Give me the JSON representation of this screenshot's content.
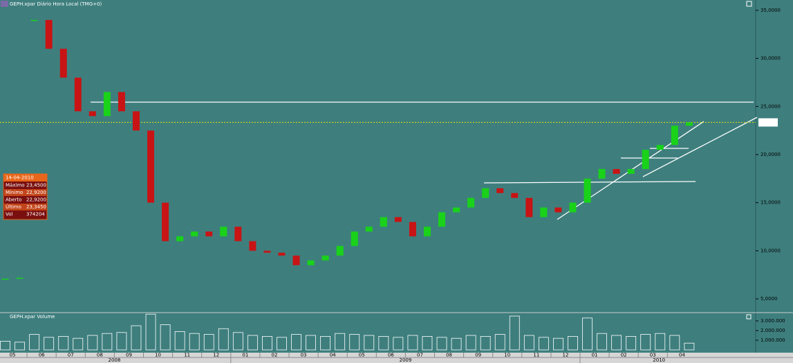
{
  "header": {
    "title": "GEPH.xpar Diário Hora Local (TMG+0)"
  },
  "info_panel": {
    "date": "14-04-2010",
    "rows": [
      [
        "Máximo",
        "23,4500"
      ],
      [
        "Mínimo",
        "22,9200"
      ],
      [
        "Aberto",
        "22,9200"
      ],
      [
        "Último",
        "23,3450"
      ],
      [
        "Vol",
        "374204"
      ]
    ]
  },
  "chart_data": [
    {
      "type": "candlestick",
      "categories": [
        "05",
        null,
        "06",
        null,
        "07",
        null,
        "08",
        null,
        "09",
        null,
        "10",
        null,
        "11",
        null,
        "12",
        null,
        "01",
        null,
        "02",
        null,
        "03",
        null,
        "04",
        null,
        "05",
        null,
        "06",
        null,
        "07",
        null,
        "08",
        null,
        "09",
        null,
        "10",
        null,
        "11",
        null,
        "12",
        null,
        "01",
        null,
        "02",
        null,
        "03",
        null,
        "04",
        null
      ],
      "years": [
        "2008",
        "2009",
        "2010"
      ],
      "values": [
        7100,
        7200,
        34000,
        31000,
        28000,
        24500,
        24000,
        26500,
        24500,
        22500,
        15000,
        11000,
        11500,
        12000,
        11500,
        12500,
        11000,
        10000,
        9800,
        9500,
        8500,
        9000,
        9500,
        10500,
        12000,
        12500,
        13500,
        13000,
        11500,
        12500,
        14000,
        14500,
        15500,
        16500,
        16000,
        15500,
        13500,
        14500,
        14000,
        15000,
        17500,
        18500,
        18000,
        18500,
        20500,
        21000,
        23000,
        23345
      ],
      "up_color": "#19d219",
      "down_color": "#c81414",
      "ylim": [
        3571,
        36071
      ],
      "yticks": [
        {
          "value": 5000,
          "label": "5,0000"
        },
        {
          "value": 10000,
          "label": "10,0000"
        },
        {
          "value": 15000,
          "label": "15,0000"
        },
        {
          "value": 20000,
          "label": "20,0000"
        },
        {
          "value": 25000,
          "label": "25,0000"
        },
        {
          "value": 30000,
          "label": "30,0000"
        },
        {
          "value": 35000,
          "label": "35,0000"
        }
      ]
    },
    {
      "type": "bar",
      "title": "GEPH.xpar Volume",
      "values": [
        900000,
        800000,
        1600000,
        1300000,
        1400000,
        1200000,
        1500000,
        1700000,
        1800000,
        2500000,
        3700000,
        2600000,
        1900000,
        1700000,
        1600000,
        2200000,
        1800000,
        1500000,
        1400000,
        1300000,
        1600000,
        1500000,
        1400000,
        1700000,
        1600000,
        1500000,
        1400000,
        1300000,
        1500000,
        1400000,
        1300000,
        1200000,
        1500000,
        1400000,
        1600000,
        3500000,
        1500000,
        1300000,
        1200000,
        1400000,
        3300000,
        1700000,
        1500000,
        1400000,
        1600000,
        1700000,
        1500000,
        700000
      ],
      "color": "#ffffff",
      "ylim": [
        0,
        3857143
      ],
      "yticks": [
        {
          "value": 1000000,
          "label": "1.000.000"
        },
        {
          "value": 2000000,
          "label": "2.000.000"
        },
        {
          "value": 3000000,
          "label": "3.000.000"
        }
      ]
    }
  ]
}
